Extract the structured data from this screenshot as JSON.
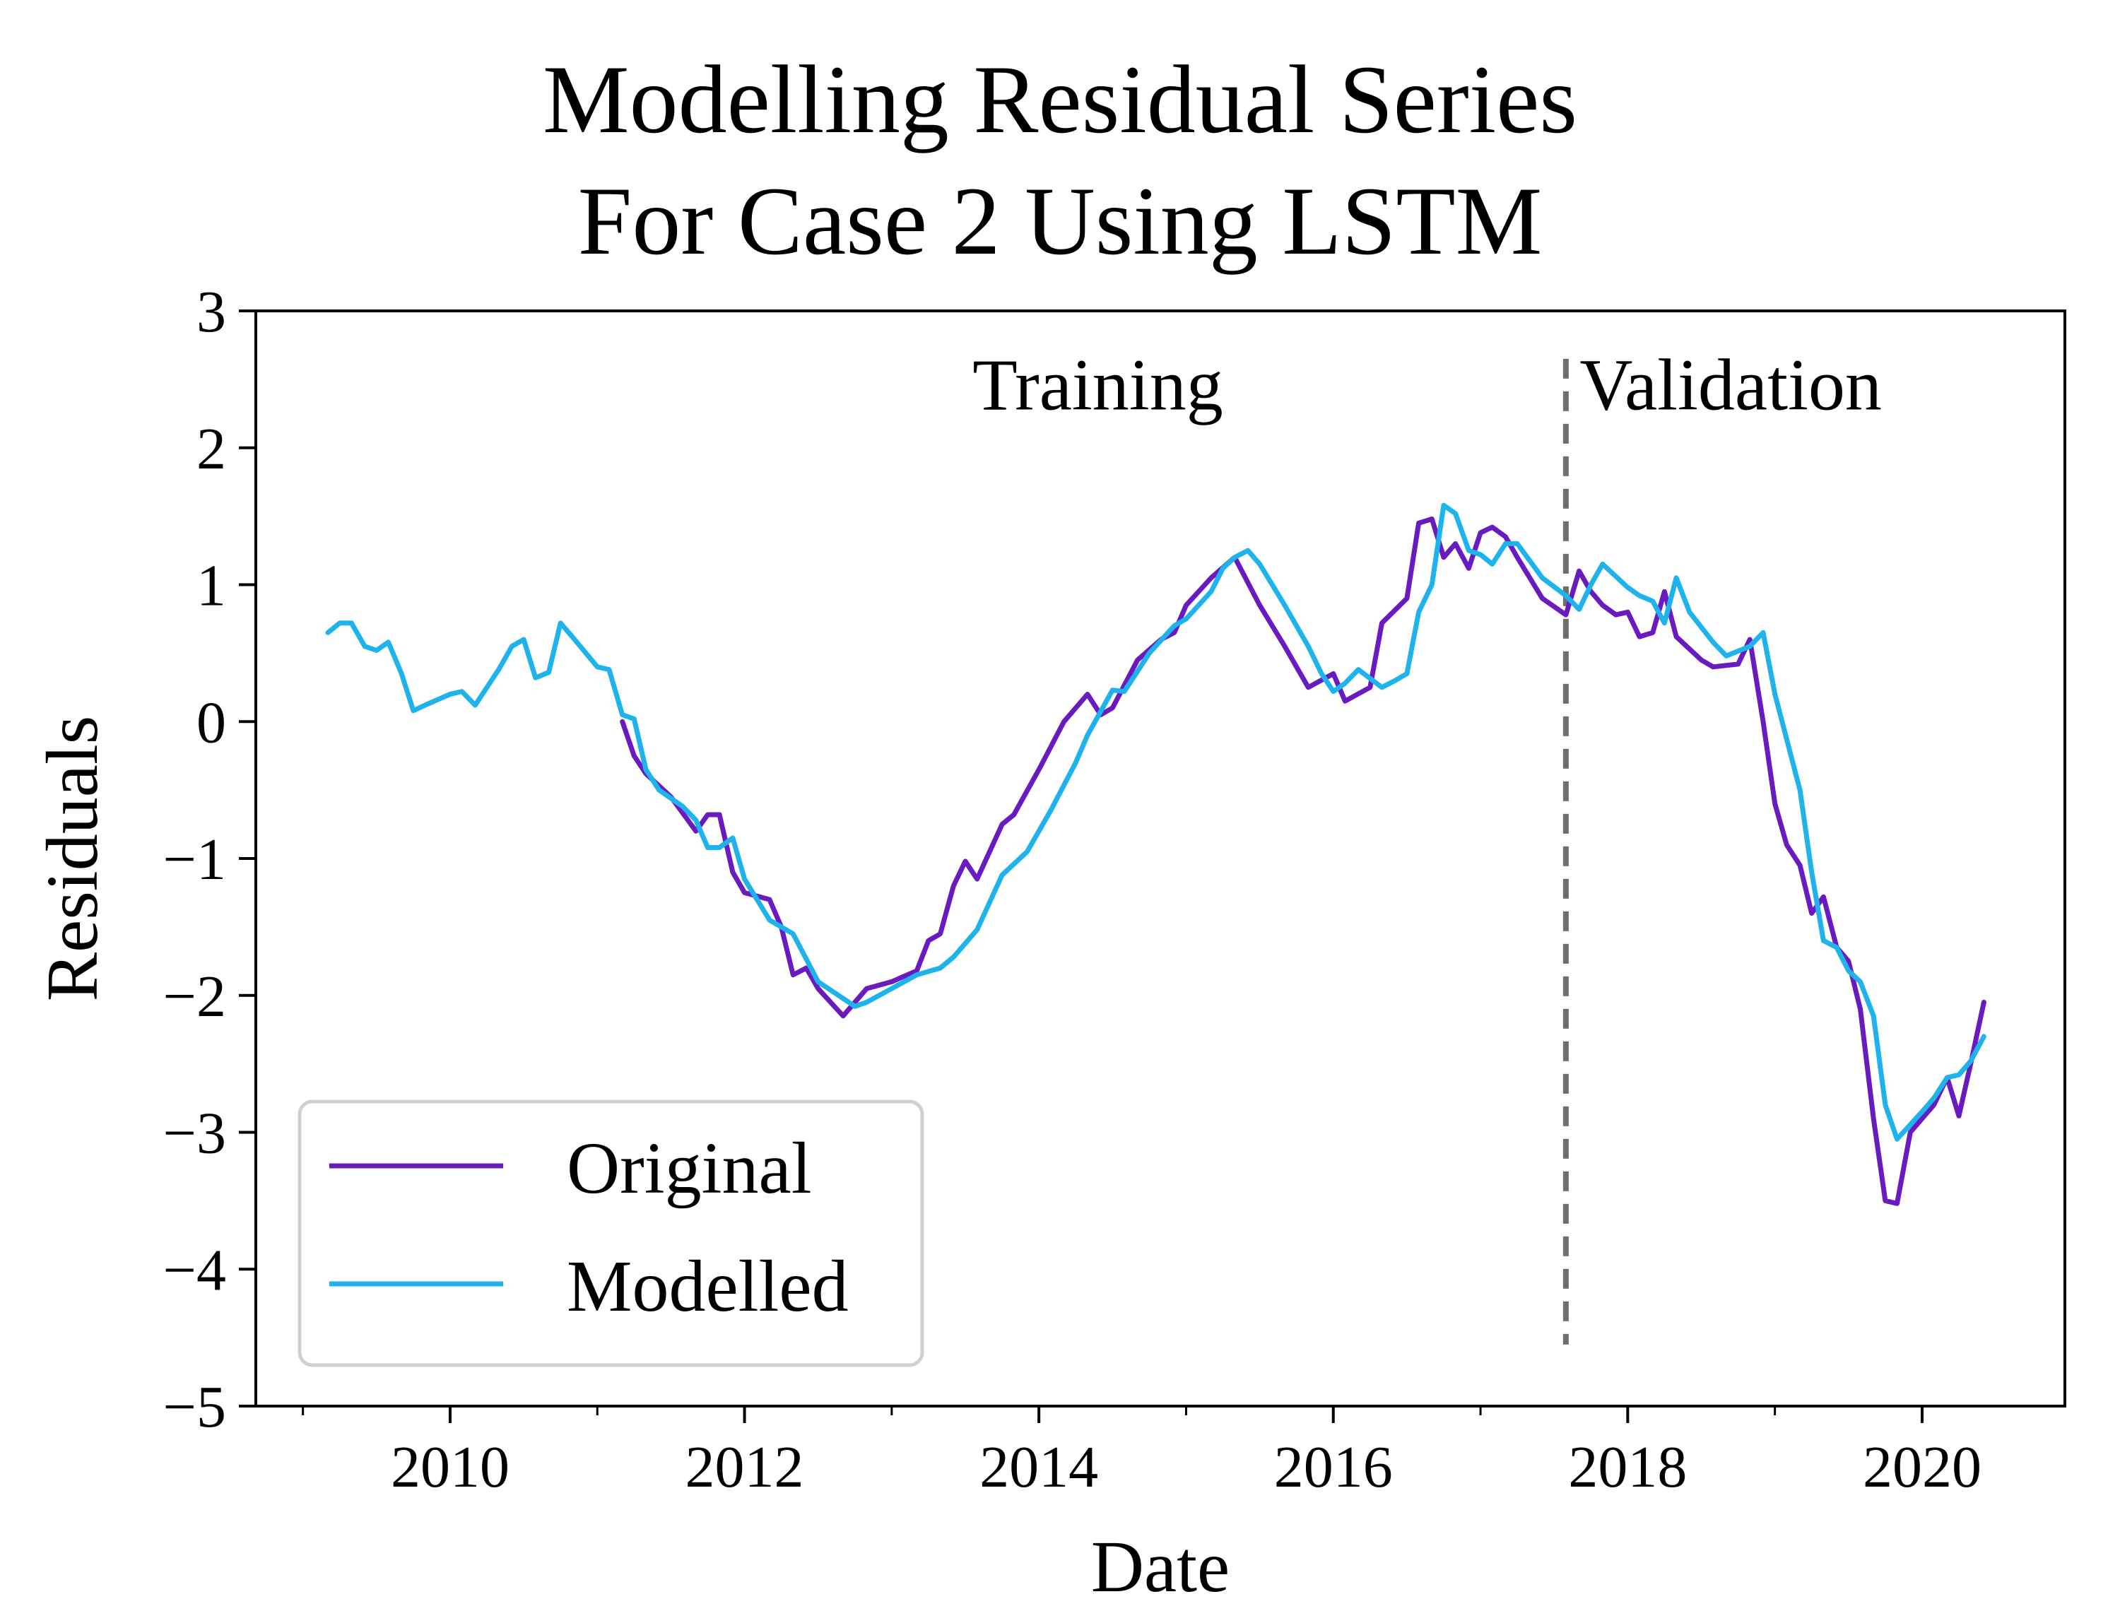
{
  "chart_data": {
    "type": "line",
    "title": [
      "Modelling Residual Series",
      "For Case 2 Using LSTM"
    ],
    "xlabel": "Date",
    "ylabel": "Residuals",
    "xlim": [
      2008.68,
      2020.97
    ],
    "ylim": [
      -5,
      3
    ],
    "xticks": [
      2010,
      2012,
      2014,
      2016,
      2018,
      2020
    ],
    "xtick_labels": [
      "2010",
      "2012",
      "2014",
      "2016",
      "2018",
      "2020"
    ],
    "yticks": [
      3,
      2,
      1,
      0,
      -1,
      -2,
      -3,
      -4,
      -5
    ],
    "ytick_labels": [
      "3",
      "2",
      "1",
      "0",
      "−1",
      "−2",
      "−3",
      "−4",
      "−5"
    ],
    "grid": false,
    "legend_position": "lower-left",
    "split_line": {
      "x": 2017.58,
      "style": "dashed",
      "color": "#6e6e6e"
    },
    "annotations": [
      {
        "text": "Training",
        "x": 2014.4,
        "y": 2.28
      },
      {
        "text": "Validation",
        "x": 2018.7,
        "y": 2.28
      }
    ],
    "series": [
      {
        "name": "Original",
        "color": "#6a1bbf",
        "x": [
          2011.17,
          2011.25,
          2011.33,
          2011.5,
          2011.67,
          2011.75,
          2011.83,
          2011.92,
          2012.0,
          2012.17,
          2012.25,
          2012.33,
          2012.42,
          2012.5,
          2012.67,
          2012.83,
          2013.0,
          2013.17,
          2013.25,
          2013.33,
          2013.42,
          2013.5,
          2013.58,
          2013.75,
          2013.83,
          2014.0,
          2014.17,
          2014.33,
          2014.42,
          2014.5,
          2014.67,
          2014.83,
          2014.92,
          2015.0,
          2015.17,
          2015.33,
          2015.5,
          2015.67,
          2015.83,
          2016.0,
          2016.08,
          2016.25,
          2016.33,
          2016.5,
          2016.58,
          2016.67,
          2016.75,
          2016.83,
          2016.92,
          2017.0,
          2017.08,
          2017.17,
          2017.25,
          2017.42,
          2017.58,
          2017.67,
          2017.75,
          2017.83,
          2017.92,
          2018.0,
          2018.08,
          2018.17,
          2018.25,
          2018.33,
          2018.5,
          2018.58,
          2018.75,
          2018.83,
          2018.92,
          2019.0,
          2019.08,
          2019.17,
          2019.25,
          2019.33,
          2019.42,
          2019.5,
          2019.58,
          2019.67,
          2019.75,
          2019.83,
          2019.92,
          2020.0,
          2020.08,
          2020.17,
          2020.25,
          2020.33,
          2020.42
        ],
        "y": [
          0.0,
          -0.25,
          -0.38,
          -0.55,
          -0.8,
          -0.68,
          -0.68,
          -1.1,
          -1.25,
          -1.3,
          -1.5,
          -1.85,
          -1.8,
          -1.95,
          -2.15,
          -1.95,
          -1.9,
          -1.82,
          -1.6,
          -1.55,
          -1.2,
          -1.02,
          -1.15,
          -0.75,
          -0.68,
          -0.35,
          0.0,
          0.2,
          0.05,
          0.1,
          0.45,
          0.6,
          0.65,
          0.85,
          1.05,
          1.2,
          0.85,
          0.55,
          0.25,
          0.35,
          0.15,
          0.25,
          0.72,
          0.9,
          1.45,
          1.48,
          1.2,
          1.3,
          1.12,
          1.38,
          1.42,
          1.35,
          1.2,
          0.9,
          0.78,
          1.1,
          0.95,
          0.85,
          0.78,
          0.8,
          0.62,
          0.65,
          0.95,
          0.62,
          0.45,
          0.4,
          0.42,
          0.6,
          0.0,
          -0.6,
          -0.9,
          -1.05,
          -1.4,
          -1.28,
          -1.65,
          -1.75,
          -2.1,
          -2.9,
          -3.5,
          -3.52,
          -3.0,
          -2.9,
          -2.8,
          -2.6,
          -2.88,
          -2.5,
          -2.05
        ]
      },
      {
        "name": "Modelled",
        "color": "#1fb3ec",
        "x": [
          2009.17,
          2009.25,
          2009.33,
          2009.42,
          2009.5,
          2009.58,
          2009.67,
          2009.75,
          2009.83,
          2010.0,
          2010.08,
          2010.17,
          2010.33,
          2010.42,
          2010.5,
          2010.58,
          2010.67,
          2010.75,
          2010.83,
          2011.0,
          2011.08,
          2011.17,
          2011.25,
          2011.33,
          2011.42,
          2011.58,
          2011.67,
          2011.75,
          2011.83,
          2011.92,
          2012.0,
          2012.17,
          2012.33,
          2012.5,
          2012.75,
          2012.83,
          2013.0,
          2013.17,
          2013.33,
          2013.42,
          2013.58,
          2013.75,
          2013.92,
          2014.08,
          2014.25,
          2014.33,
          2014.5,
          2014.58,
          2014.75,
          2014.92,
          2015.0,
          2015.17,
          2015.25,
          2015.33,
          2015.42,
          2015.5,
          2015.67,
          2015.83,
          2015.92,
          2016.0,
          2016.08,
          2016.17,
          2016.33,
          2016.42,
          2016.5,
          2016.58,
          2016.67,
          2016.75,
          2016.83,
          2016.92,
          2017.0,
          2017.08,
          2017.17,
          2017.25,
          2017.42,
          2017.58,
          2017.67,
          2017.75,
          2017.83,
          2018.0,
          2018.08,
          2018.17,
          2018.25,
          2018.33,
          2018.42,
          2018.58,
          2018.67,
          2018.83,
          2018.92,
          2019.0,
          2019.17,
          2019.25,
          2019.33,
          2019.42,
          2019.5,
          2019.58,
          2019.67,
          2019.75,
          2019.83,
          2020.0,
          2020.08,
          2020.17,
          2020.25,
          2020.33,
          2020.42
        ],
        "y": [
          0.65,
          0.72,
          0.72,
          0.55,
          0.52,
          0.58,
          0.35,
          0.08,
          0.12,
          0.2,
          0.22,
          0.12,
          0.38,
          0.55,
          0.6,
          0.32,
          0.36,
          0.72,
          0.62,
          0.4,
          0.38,
          0.05,
          0.02,
          -0.35,
          -0.5,
          -0.62,
          -0.72,
          -0.92,
          -0.92,
          -0.85,
          -1.15,
          -1.45,
          -1.55,
          -1.9,
          -2.08,
          -2.05,
          -1.95,
          -1.85,
          -1.8,
          -1.72,
          -1.52,
          -1.12,
          -0.95,
          -0.65,
          -0.3,
          -0.1,
          0.23,
          0.22,
          0.5,
          0.7,
          0.75,
          0.95,
          1.12,
          1.2,
          1.25,
          1.15,
          0.85,
          0.55,
          0.35,
          0.22,
          0.28,
          0.38,
          0.25,
          0.3,
          0.35,
          0.8,
          1.0,
          1.58,
          1.52,
          1.25,
          1.22,
          1.15,
          1.3,
          1.3,
          1.05,
          0.92,
          0.82,
          1.0,
          1.15,
          0.98,
          0.92,
          0.88,
          0.72,
          1.05,
          0.8,
          0.58,
          0.48,
          0.55,
          0.65,
          0.2,
          -0.5,
          -1.1,
          -1.6,
          -1.65,
          -1.82,
          -1.9,
          -2.15,
          -2.8,
          -3.05,
          -2.85,
          -2.75,
          -2.6,
          -2.58,
          -2.48,
          -2.3
        ]
      }
    ]
  }
}
